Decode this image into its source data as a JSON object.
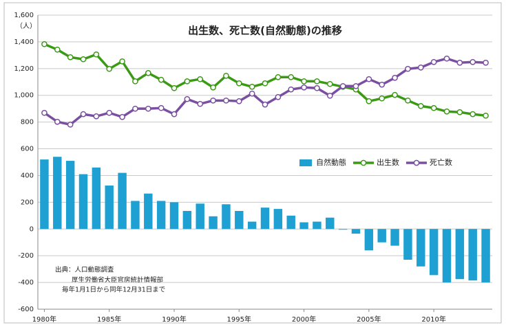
{
  "chart_data": {
    "type": "combo",
    "title": "出生数、死亡数(自然動態)の推移",
    "y_unit": "（人）",
    "annotation": [
      "出典：人口動態調査",
      "厚生労働省大臣官房統計情報部",
      "毎年1月1日から同年12月31日まで"
    ],
    "x": [
      1980,
      1981,
      1982,
      1983,
      1984,
      1985,
      1986,
      1987,
      1988,
      1989,
      1990,
      1991,
      1992,
      1993,
      1994,
      1995,
      1996,
      1997,
      1998,
      1999,
      2000,
      2001,
      2002,
      2003,
      2004,
      2005,
      2006,
      2007,
      2008,
      2009,
      2010,
      2011,
      2012,
      2013,
      2014
    ],
    "xlim": [
      1979.5,
      2014.5
    ],
    "xticks": [
      {
        "value": 1980,
        "label": "1980年"
      },
      {
        "value": 1985,
        "label": "1985年"
      },
      {
        "value": 1990,
        "label": "1990年"
      },
      {
        "value": 1995,
        "label": "1995年"
      },
      {
        "value": 2000,
        "label": "2000年"
      },
      {
        "value": 2005,
        "label": "2005年"
      },
      {
        "value": 2010,
        "label": "2010年"
      }
    ],
    "ylim": [
      -600,
      1600
    ],
    "yticks": [
      -600,
      -400,
      -200,
      0,
      200,
      400,
      600,
      800,
      {
        "value": 1000,
        "label": "1,000"
      },
      {
        "value": 1200,
        "label": "1,200"
      },
      {
        "value": 1400,
        "label": "1,400"
      },
      {
        "value": 1600,
        "label": "1,600"
      }
    ],
    "grid": true,
    "legend": "right",
    "series": [
      {
        "name": "自然動態",
        "type": "bar",
        "color": "#1ea0d2",
        "values": [
          520,
          540,
          510,
          410,
          460,
          325,
          420,
          210,
          265,
          210,
          200,
          135,
          190,
          95,
          185,
          135,
          55,
          160,
          150,
          100,
          50,
          55,
          85,
          -5,
          -35,
          -160,
          -100,
          -125,
          -230,
          -280,
          -345,
          -400,
          -375,
          -385,
          -400
        ]
      },
      {
        "name": "出生数",
        "type": "line",
        "color": "#3a9a14",
        "values": [
          1383,
          1342,
          1285,
          1270,
          1306,
          1198,
          1254,
          1105,
          1167,
          1116,
          1054,
          1105,
          1121,
          1059,
          1146,
          1090,
          1064,
          1090,
          1136,
          1136,
          1105,
          1105,
          1085,
          1064,
          1044,
          956,
          977,
          1003,
          961,
          920,
          905,
          879,
          874,
          859,
          848
        ]
      },
      {
        "name": "死亡数",
        "type": "line",
        "color": "#7a4ea0",
        "values": [
          869,
          802,
          781,
          859,
          843,
          869,
          838,
          900,
          900,
          905,
          859,
          972,
          936,
          961,
          961,
          956,
          1013,
          931,
          987,
          1044,
          1059,
          1054,
          997,
          1069,
          1069,
          1121,
          1080,
          1131,
          1198,
          1208,
          1249,
          1275,
          1244,
          1249,
          1244
        ]
      }
    ]
  }
}
